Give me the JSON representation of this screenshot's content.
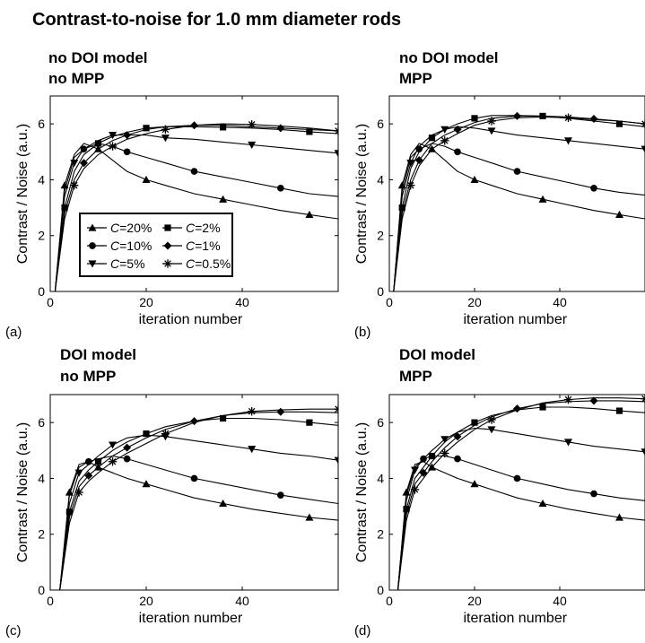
{
  "figure_title": "Contrast-to-noise for 1.0 mm diameter rods",
  "legend": {
    "entries": [
      {
        "prefix": "C",
        "suffix": "=20%",
        "marker": "triangle-up"
      },
      {
        "prefix": "C",
        "suffix": "=2%",
        "marker": "square"
      },
      {
        "prefix": "C",
        "suffix": "=10%",
        "marker": "circle"
      },
      {
        "prefix": "C",
        "suffix": "=1%",
        "marker": "diamond"
      },
      {
        "prefix": "C",
        "suffix": "=5%",
        "marker": "triangle-down"
      },
      {
        "prefix": "C",
        "suffix": "=0.5%",
        "marker": "asterisk"
      }
    ]
  },
  "chart_data": [
    {
      "type": "line",
      "panel_label": "(a)",
      "title_lines": [
        "no DOI model",
        "no MPP"
      ],
      "xlabel": "iteration number",
      "ylabel": "Contrast / Noise (a.u.)",
      "xlim": [
        0,
        60
      ],
      "ylim": [
        0,
        7
      ],
      "xticks": [
        0,
        20,
        40
      ],
      "yticks": [
        0,
        2,
        4,
        6
      ],
      "grid": false,
      "series": [
        {
          "name": "C=20%",
          "marker": "triangle-up",
          "x": [
            1,
            3,
            5,
            7,
            10,
            13,
            16,
            20,
            24,
            30,
            36,
            42,
            48,
            54,
            60
          ],
          "y": [
            0,
            3.8,
            4.9,
            5.3,
            5.1,
            4.7,
            4.3,
            4.0,
            3.8,
            3.5,
            3.3,
            3.1,
            2.9,
            2.75,
            2.6
          ]
        },
        {
          "name": "C=10%",
          "marker": "circle",
          "x": [
            1,
            3,
            5,
            7,
            10,
            13,
            16,
            20,
            24,
            30,
            36,
            42,
            48,
            54,
            60
          ],
          "y": [
            0,
            3.6,
            4.8,
            5.1,
            5.3,
            5.2,
            5.0,
            4.8,
            4.6,
            4.3,
            4.1,
            3.9,
            3.7,
            3.5,
            3.4
          ]
        },
        {
          "name": "C=5%",
          "marker": "triangle-down",
          "x": [
            1,
            3,
            5,
            7,
            10,
            13,
            16,
            20,
            24,
            30,
            36,
            42,
            48,
            54,
            60
          ],
          "y": [
            0,
            3.4,
            4.6,
            5.1,
            5.4,
            5.6,
            5.6,
            5.6,
            5.5,
            5.45,
            5.35,
            5.25,
            5.15,
            5.05,
            4.95
          ]
        },
        {
          "name": "C=2%",
          "marker": "square",
          "x": [
            1,
            3,
            5,
            7,
            10,
            13,
            16,
            20,
            24,
            30,
            36,
            42,
            48,
            54,
            60
          ],
          "y": [
            0,
            3.0,
            4.3,
            4.9,
            5.3,
            5.55,
            5.7,
            5.85,
            5.9,
            5.9,
            5.88,
            5.85,
            5.8,
            5.72,
            5.65
          ]
        },
        {
          "name": "C=1%",
          "marker": "diamond",
          "x": [
            1,
            3,
            5,
            7,
            10,
            13,
            16,
            20,
            24,
            30,
            36,
            42,
            48,
            54,
            60
          ],
          "y": [
            0,
            2.8,
            4.0,
            4.6,
            5.1,
            5.4,
            5.6,
            5.8,
            5.9,
            5.95,
            5.95,
            5.9,
            5.85,
            5.8,
            5.75
          ]
        },
        {
          "name": "C=0.5%",
          "marker": "asterisk",
          "x": [
            1,
            3,
            5,
            7,
            10,
            13,
            16,
            20,
            24,
            30,
            36,
            42,
            48,
            54,
            60
          ],
          "y": [
            0,
            2.6,
            3.8,
            4.4,
            4.9,
            5.2,
            5.45,
            5.65,
            5.8,
            5.95,
            6.0,
            5.98,
            5.92,
            5.85,
            5.75
          ]
        }
      ]
    },
    {
      "type": "line",
      "panel_label": "(b)",
      "title_lines": [
        "no DOI model",
        "MPP"
      ],
      "xlabel": "iteration number",
      "ylabel": "Contrast / Noise (a.u.)",
      "xlim": [
        0,
        60
      ],
      "ylim": [
        0,
        7
      ],
      "xticks": [
        0,
        20,
        40
      ],
      "yticks": [
        0,
        2,
        4,
        6
      ],
      "grid": false,
      "series": [
        {
          "name": "C=20%",
          "marker": "triangle-up",
          "x": [
            1,
            3,
            5,
            7,
            10,
            13,
            16,
            20,
            24,
            30,
            36,
            42,
            48,
            54,
            60
          ],
          "y": [
            0,
            3.8,
            4.9,
            5.3,
            5.1,
            4.7,
            4.3,
            4.0,
            3.8,
            3.5,
            3.3,
            3.1,
            2.9,
            2.75,
            2.6
          ]
        },
        {
          "name": "C=10%",
          "marker": "circle",
          "x": [
            1,
            3,
            5,
            7,
            10,
            13,
            16,
            20,
            24,
            30,
            36,
            42,
            48,
            54,
            60
          ],
          "y": [
            0,
            3.6,
            4.8,
            5.1,
            5.3,
            5.2,
            5.0,
            4.8,
            4.6,
            4.3,
            4.1,
            3.9,
            3.7,
            3.55,
            3.45
          ]
        },
        {
          "name": "C=5%",
          "marker": "triangle-down",
          "x": [
            1,
            3,
            5,
            7,
            10,
            13,
            16,
            20,
            24,
            30,
            36,
            42,
            48,
            54,
            60
          ],
          "y": [
            0,
            3.4,
            4.6,
            5.2,
            5.6,
            5.8,
            5.9,
            5.85,
            5.75,
            5.6,
            5.5,
            5.4,
            5.3,
            5.2,
            5.1
          ]
        },
        {
          "name": "C=2%",
          "marker": "square",
          "x": [
            1,
            3,
            5,
            7,
            10,
            13,
            16,
            20,
            24,
            30,
            36,
            42,
            48,
            54,
            60
          ],
          "y": [
            0,
            3.0,
            4.4,
            5.0,
            5.5,
            5.8,
            6.0,
            6.2,
            6.3,
            6.3,
            6.28,
            6.2,
            6.1,
            6.0,
            5.9
          ]
        },
        {
          "name": "C=1%",
          "marker": "diamond",
          "x": [
            1,
            3,
            5,
            7,
            10,
            13,
            16,
            20,
            24,
            30,
            36,
            42,
            48,
            54,
            60
          ],
          "y": [
            0,
            2.8,
            4.0,
            4.7,
            5.3,
            5.6,
            5.8,
            6.05,
            6.2,
            6.28,
            6.28,
            6.25,
            6.18,
            6.1,
            6.0
          ]
        },
        {
          "name": "C=0.5%",
          "marker": "asterisk",
          "x": [
            1,
            3,
            5,
            7,
            10,
            13,
            16,
            20,
            24,
            30,
            36,
            42,
            48,
            54,
            60
          ],
          "y": [
            0,
            2.6,
            3.8,
            4.5,
            5.1,
            5.4,
            5.65,
            5.95,
            6.1,
            6.22,
            6.25,
            6.22,
            6.15,
            6.1,
            6.0
          ]
        }
      ]
    },
    {
      "type": "line",
      "panel_label": "(c)",
      "title_lines": [
        "DOI model",
        "no MPP"
      ],
      "xlabel": "iteration number",
      "ylabel": "Contrast / Noise (a.u.)",
      "xlim": [
        0,
        60
      ],
      "ylim": [
        0,
        7
      ],
      "xticks": [
        0,
        20,
        40
      ],
      "yticks": [
        0,
        2,
        4,
        6
      ],
      "grid": false,
      "series": [
        {
          "name": "C=20%",
          "marker": "triangle-up",
          "x": [
            2,
            4,
            6,
            8,
            10,
            13,
            16,
            20,
            24,
            30,
            36,
            42,
            48,
            54,
            60
          ],
          "y": [
            0,
            3.5,
            4.5,
            4.6,
            4.4,
            4.2,
            4.0,
            3.8,
            3.6,
            3.3,
            3.1,
            2.9,
            2.75,
            2.6,
            2.5
          ]
        },
        {
          "name": "C=10%",
          "marker": "circle",
          "x": [
            2,
            4,
            6,
            8,
            10,
            13,
            16,
            20,
            24,
            30,
            36,
            42,
            48,
            54,
            60
          ],
          "y": [
            0,
            3.4,
            4.4,
            4.6,
            4.7,
            4.8,
            4.7,
            4.5,
            4.3,
            4.0,
            3.8,
            3.6,
            3.4,
            3.25,
            3.1
          ]
        },
        {
          "name": "C=5%",
          "marker": "triangle-down",
          "x": [
            2,
            4,
            6,
            8,
            10,
            13,
            16,
            20,
            24,
            30,
            36,
            42,
            48,
            54,
            60
          ],
          "y": [
            0,
            3.1,
            4.2,
            4.5,
            4.8,
            5.2,
            5.45,
            5.55,
            5.5,
            5.35,
            5.2,
            5.05,
            4.9,
            4.8,
            4.65
          ]
        },
        {
          "name": "C=2%",
          "marker": "square",
          "x": [
            2,
            4,
            6,
            8,
            10,
            13,
            16,
            20,
            24,
            30,
            36,
            42,
            48,
            54,
            60
          ],
          "y": [
            0,
            2.8,
            3.9,
            4.3,
            4.6,
            5.0,
            5.3,
            5.6,
            5.85,
            6.05,
            6.15,
            6.15,
            6.1,
            6.0,
            5.9
          ]
        },
        {
          "name": "C=1%",
          "marker": "diamond",
          "x": [
            2,
            4,
            6,
            8,
            10,
            13,
            16,
            20,
            24,
            30,
            36,
            42,
            48,
            54,
            60
          ],
          "y": [
            0,
            2.6,
            3.7,
            4.1,
            4.4,
            4.8,
            5.1,
            5.45,
            5.75,
            6.05,
            6.25,
            6.35,
            6.38,
            6.38,
            6.35
          ]
        },
        {
          "name": "C=0.5%",
          "marker": "asterisk",
          "x": [
            2,
            4,
            6,
            8,
            10,
            13,
            16,
            20,
            24,
            30,
            36,
            42,
            48,
            54,
            60
          ],
          "y": [
            0,
            2.4,
            3.5,
            3.9,
            4.2,
            4.6,
            4.9,
            5.25,
            5.6,
            6.0,
            6.25,
            6.4,
            6.45,
            6.48,
            6.48
          ]
        }
      ]
    },
    {
      "type": "line",
      "panel_label": "(d)",
      "title_lines": [
        "DOI model",
        "MPP"
      ],
      "xlabel": "iteration number",
      "ylabel": "Contrast / Noise (a.u.)",
      "xlim": [
        0,
        60
      ],
      "ylim": [
        0,
        7
      ],
      "xticks": [
        0,
        20,
        40
      ],
      "yticks": [
        0,
        2,
        4,
        6
      ],
      "grid": false,
      "series": [
        {
          "name": "C=20%",
          "marker": "triangle-up",
          "x": [
            2,
            4,
            6,
            8,
            10,
            13,
            16,
            20,
            24,
            30,
            36,
            42,
            48,
            54,
            60
          ],
          "y": [
            0,
            3.5,
            4.5,
            4.6,
            4.4,
            4.2,
            4.0,
            3.8,
            3.6,
            3.3,
            3.1,
            2.9,
            2.75,
            2.6,
            2.5
          ]
        },
        {
          "name": "C=10%",
          "marker": "circle",
          "x": [
            2,
            4,
            6,
            8,
            10,
            13,
            16,
            20,
            24,
            30,
            36,
            42,
            48,
            54,
            60
          ],
          "y": [
            0,
            3.4,
            4.4,
            4.7,
            4.8,
            4.8,
            4.7,
            4.5,
            4.3,
            4.0,
            3.8,
            3.6,
            3.45,
            3.3,
            3.2
          ]
        },
        {
          "name": "C=5%",
          "marker": "triangle-down",
          "x": [
            2,
            4,
            6,
            8,
            10,
            13,
            16,
            20,
            24,
            30,
            36,
            42,
            48,
            54,
            60
          ],
          "y": [
            0,
            3.2,
            4.3,
            4.7,
            5.0,
            5.4,
            5.65,
            5.8,
            5.75,
            5.6,
            5.45,
            5.3,
            5.15,
            5.05,
            4.95
          ]
        },
        {
          "name": "C=2%",
          "marker": "square",
          "x": [
            2,
            4,
            6,
            8,
            10,
            13,
            16,
            20,
            24,
            30,
            36,
            42,
            48,
            54,
            60
          ],
          "y": [
            0,
            2.9,
            4.0,
            4.4,
            4.8,
            5.3,
            5.65,
            6.0,
            6.25,
            6.45,
            6.55,
            6.55,
            6.5,
            6.42,
            6.35
          ]
        },
        {
          "name": "C=1%",
          "marker": "diamond",
          "x": [
            2,
            4,
            6,
            8,
            10,
            13,
            16,
            20,
            24,
            30,
            36,
            42,
            48,
            54,
            60
          ],
          "y": [
            0,
            2.7,
            3.8,
            4.2,
            4.6,
            5.1,
            5.5,
            5.9,
            6.2,
            6.5,
            6.68,
            6.75,
            6.78,
            6.78,
            6.75
          ]
        },
        {
          "name": "C=0.5%",
          "marker": "asterisk",
          "x": [
            2,
            4,
            6,
            8,
            10,
            13,
            16,
            20,
            24,
            30,
            36,
            42,
            48,
            54,
            60
          ],
          "y": [
            0,
            2.5,
            3.6,
            4.0,
            4.4,
            4.9,
            5.3,
            5.75,
            6.1,
            6.45,
            6.7,
            6.82,
            6.88,
            6.88,
            6.85
          ]
        }
      ]
    }
  ]
}
